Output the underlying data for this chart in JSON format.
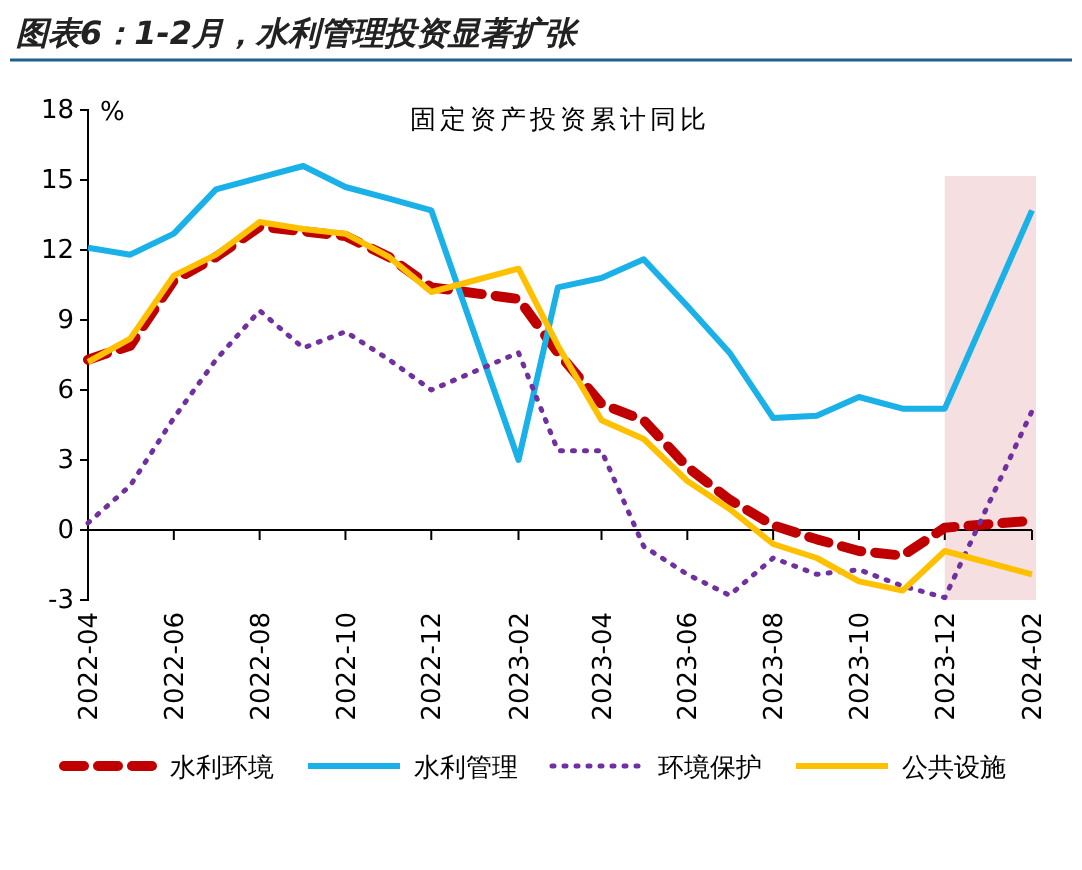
{
  "chart_data": {
    "type": "line",
    "title": "图表6：1-2月，水利管理投资显著扩张",
    "subtitle": "固定资产投资累计同比",
    "ylabel": "%",
    "x": [
      "2022-04",
      "2022-05",
      "2022-06",
      "2022-07",
      "2022-08",
      "2022-09",
      "2022-10",
      "2022-11",
      "2022-12",
      "2023-02",
      "2023-03",
      "2023-04",
      "2023-05",
      "2023-06",
      "2023-07",
      "2023-08",
      "2023-09",
      "2023-10",
      "2023-11",
      "2023-12",
      "2024-02"
    ],
    "series": [
      {
        "name": "水利环境",
        "color": "#c00000",
        "line_style": "dashed",
        "values": [
          7.3,
          7.9,
          10.7,
          11.7,
          13.0,
          12.8,
          12.6,
          11.7,
          10.4,
          9.9,
          7.6,
          5.4,
          4.7,
          2.7,
          1.3,
          0.2,
          -0.4,
          -0.9,
          -1.1,
          0.1,
          0.4
        ]
      },
      {
        "name": "水利管理",
        "color": "#1ab0e8",
        "line_style": "solid",
        "values": [
          12.1,
          11.8,
          12.7,
          14.6,
          15.1,
          15.6,
          14.7,
          14.2,
          13.7,
          3.0,
          10.4,
          10.8,
          11.6,
          9.6,
          7.6,
          4.8,
          4.9,
          5.7,
          5.2,
          5.2,
          13.7
        ]
      },
      {
        "name": "环境保护",
        "color": "#7030a0",
        "line_style": "dotted",
        "values": [
          0.3,
          1.9,
          4.8,
          7.3,
          9.4,
          7.8,
          8.5,
          7.3,
          6.0,
          7.6,
          3.4,
          3.4,
          -0.7,
          -1.9,
          -2.8,
          -1.2,
          -1.9,
          -1.7,
          -2.4,
          -2.9,
          5.1
        ]
      },
      {
        "name": "公共设施",
        "color": "#ffc000",
        "line_style": "solid",
        "values": [
          7.2,
          8.2,
          10.9,
          11.8,
          13.2,
          12.9,
          12.7,
          11.7,
          10.2,
          11.2,
          7.9,
          4.7,
          3.9,
          2.1,
          0.9,
          -0.6,
          -1.2,
          -2.2,
          -2.6,
          -0.9,
          -1.9
        ]
      }
    ],
    "xlim": [
      "2022-04",
      "2024-02"
    ],
    "xticks": [
      {
        "value": "2022-04",
        "label": "2022-04"
      },
      {
        "value": "2022-06",
        "label": "2022-06"
      },
      {
        "value": "2022-08",
        "label": "2022-08"
      },
      {
        "value": "2022-10",
        "label": "2022-10"
      },
      {
        "value": "2022-12",
        "label": "2022-12"
      },
      {
        "value": "2023-02",
        "label": "2023-02"
      },
      {
        "value": "2023-04",
        "label": "2023-04"
      },
      {
        "value": "2023-06",
        "label": "2023-06"
      },
      {
        "value": "2023-08",
        "label": "2023-08"
      },
      {
        "value": "2023-10",
        "label": "2023-10"
      },
      {
        "value": "2023-12",
        "label": "2023-12"
      },
      {
        "value": "2024-02",
        "label": "2024-02"
      }
    ],
    "ylim": [
      -3,
      18
    ],
    "yticks": [
      -3,
      0,
      3,
      6,
      9,
      12,
      15,
      18
    ],
    "bands": [
      {
        "axis": "x",
        "from": "2023-12",
        "to": "2024-02",
        "color": "#f5dfe0"
      }
    ],
    "legend": "bottom",
    "marker": "none"
  }
}
